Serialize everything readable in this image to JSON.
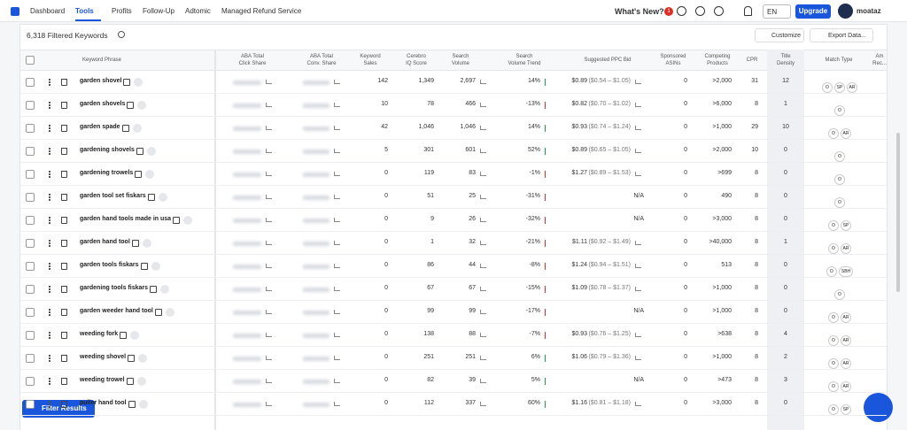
{
  "nav": {
    "items": [
      "Dashboard",
      "Tools",
      "Profits",
      "Follow-Up",
      "Adtomic",
      "Managed Refund Service"
    ],
    "active": 1,
    "whats_new": "What's New?",
    "badge": "1",
    "lang": "EN",
    "upgrade": "Upgrade",
    "user": "moataz"
  },
  "toolbar": {
    "count": "6,318 Filtered Keywords",
    "customize": "Customize",
    "export": "Export Data..."
  },
  "table": {
    "headers": {
      "keyword": [
        "Keyword Phrase"
      ],
      "click": [
        "ABA Total",
        "Click Share"
      ],
      "conv": [
        "ABA Total",
        "Conv. Share"
      ],
      "sales": [
        "Keyword",
        "Sales"
      ],
      "iq": [
        "Cerebro",
        "IQ Score"
      ],
      "volume": [
        "Search",
        "Volume"
      ],
      "trend": [
        "Search",
        "Volume Trend"
      ],
      "ppc": [
        "Suggested PPC Bid"
      ],
      "asins": [
        "Sponsored",
        "ASINs"
      ],
      "competing": [
        "Competing",
        "Products"
      ],
      "cpr": [
        "CPR"
      ],
      "density": [
        "Title",
        "Density"
      ],
      "match": [
        "Match Type"
      ],
      "amrec": [
        "Am",
        "Rec..."
      ]
    },
    "rows": [
      {
        "keyword": "garden shovel",
        "sales": "142",
        "iq": "1,349",
        "volume": "2,697",
        "trend": "14%",
        "ppc": "$0.89",
        "ppc_range": "($0.54 – $1.05)",
        "asins": "0",
        "competing": ">2,000",
        "cpr": "31",
        "density": "12",
        "match": [
          "O",
          "SP",
          "AR"
        ]
      },
      {
        "keyword": "garden shovels",
        "sales": "10",
        "iq": "78",
        "volume": "466",
        "trend": "-13%",
        "ppc": "$0.82",
        "ppc_range": "($0.70 – $1.02)",
        "asins": "0",
        "competing": ">6,000",
        "cpr": "8",
        "density": "1",
        "match": [
          "O"
        ]
      },
      {
        "keyword": "garden spade",
        "sales": "42",
        "iq": "1,046",
        "volume": "1,046",
        "trend": "14%",
        "ppc": "$0.93",
        "ppc_range": "($0.74 – $1.24)",
        "asins": "0",
        "competing": ">1,000",
        "cpr": "29",
        "density": "10",
        "match": [
          "O",
          "AR"
        ]
      },
      {
        "keyword": "gardening shovels",
        "sales": "5",
        "iq": "301",
        "volume": "601",
        "trend": "52%",
        "ppc": "$0.89",
        "ppc_range": "($0.65 – $1.05)",
        "asins": "0",
        "competing": ">2,000",
        "cpr": "10",
        "density": "0",
        "match": [
          "O"
        ]
      },
      {
        "keyword": "gardening trowels",
        "sales": "0",
        "iq": "119",
        "volume": "83",
        "trend": "-1%",
        "ppc": "$1.27",
        "ppc_range": "($0.89 – $1.53)",
        "asins": "0",
        "competing": ">699",
        "cpr": "8",
        "density": "0",
        "match": [
          "O"
        ]
      },
      {
        "keyword": "garden tool set fiskars",
        "sales": "0",
        "iq": "51",
        "volume": "25",
        "trend": "-31%",
        "ppc": "N/A",
        "asins": "0",
        "competing": "490",
        "cpr": "8",
        "density": "0",
        "match": [
          "O"
        ]
      },
      {
        "keyword": "garden hand tools made in usa",
        "sales": "0",
        "iq": "9",
        "volume": "26",
        "trend": "-32%",
        "ppc": "N/A",
        "asins": "0",
        "competing": ">3,000",
        "cpr": "8",
        "density": "0",
        "match": [
          "O",
          "SP"
        ]
      },
      {
        "keyword": "garden hand tool",
        "sales": "0",
        "iq": "1",
        "volume": "32",
        "trend": "-21%",
        "ppc": "$1.11",
        "ppc_range": "($0.92 – $1.49)",
        "asins": "0",
        "competing": ">40,000",
        "cpr": "8",
        "density": "1",
        "match": [
          "O",
          "AR"
        ]
      },
      {
        "keyword": "garden tools fiskars",
        "sales": "0",
        "iq": "86",
        "volume": "44",
        "trend": "-8%",
        "ppc": "$1.24",
        "ppc_range": "($0.94 – $1.51)",
        "asins": "0",
        "competing": "513",
        "cpr": "8",
        "density": "0",
        "match": [
          "O",
          "SBH"
        ]
      },
      {
        "keyword": "gardening tools fiskars",
        "sales": "0",
        "iq": "67",
        "volume": "67",
        "trend": "-15%",
        "ppc": "$1.09",
        "ppc_range": "($0.78 – $1.37)",
        "asins": "0",
        "competing": ">1,000",
        "cpr": "8",
        "density": "0",
        "match": [
          "O"
        ]
      },
      {
        "keyword": "garden weeder hand tool",
        "sales": "0",
        "iq": "99",
        "volume": "99",
        "trend": "-17%",
        "ppc": "N/A",
        "asins": "0",
        "competing": ">1,000",
        "cpr": "8",
        "density": "0",
        "match": [
          "O",
          "AR"
        ]
      },
      {
        "keyword": "weeding fork",
        "sales": "0",
        "iq": "138",
        "volume": "88",
        "trend": "-7%",
        "ppc": "$0.93",
        "ppc_range": "($0.76 – $1.25)",
        "asins": "0",
        "competing": ">638",
        "cpr": "8",
        "density": "4",
        "match": [
          "O",
          "AR"
        ]
      },
      {
        "keyword": "weeding shovel",
        "sales": "0",
        "iq": "251",
        "volume": "251",
        "trend": "6%",
        "ppc": "$1.06",
        "ppc_range": "($0.79 – $1.36)",
        "asins": "0",
        "competing": ">1,000",
        "cpr": "8",
        "density": "2",
        "match": [
          "O",
          "AR"
        ]
      },
      {
        "keyword": "weeding trowel",
        "sales": "0",
        "iq": "82",
        "volume": "39",
        "trend": "5%",
        "ppc": "N/A",
        "asins": "0",
        "competing": ">473",
        "cpr": "8",
        "density": "3",
        "match": [
          "O",
          "AR"
        ]
      },
      {
        "keyword": "puller hand tool",
        "sales": "0",
        "iq": "112",
        "volume": "337",
        "trend": "60%",
        "ppc": "$1.16",
        "ppc_range": "($0.81 – $1.18)",
        "asins": "0",
        "competing": ">3,000",
        "cpr": "8",
        "density": "0",
        "match": [
          "O",
          "SP"
        ]
      }
    ]
  },
  "filter_button": "Filter Results"
}
